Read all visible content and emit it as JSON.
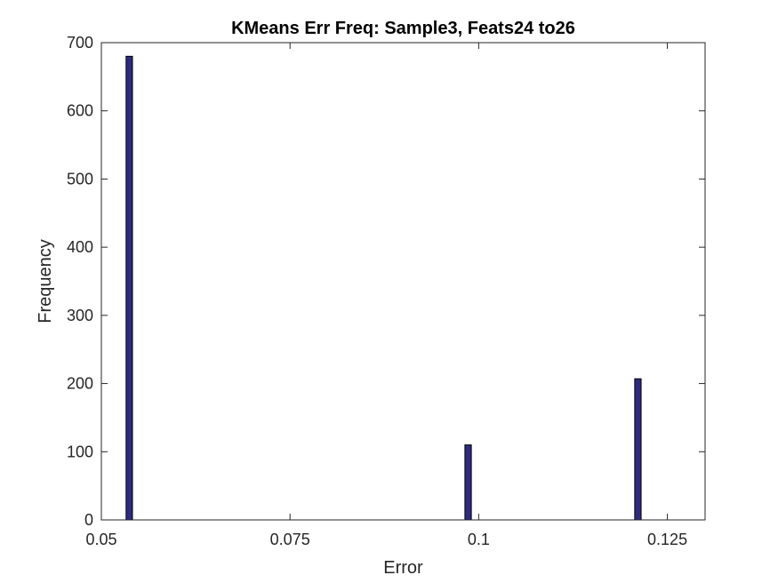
{
  "chart_data": {
    "type": "bar",
    "title": "KMeans Err Freq: Sample3, Feats24 to26",
    "xlabel": "Error",
    "ylabel": "Frequency",
    "xlim": [
      0.05,
      0.13
    ],
    "ylim": [
      0,
      700
    ],
    "xticks": [
      0.05,
      0.075,
      0.1,
      0.125
    ],
    "xtick_labels": [
      "0.05",
      "0.075",
      "0.1",
      "0.125"
    ],
    "yticks": [
      0,
      100,
      200,
      300,
      400,
      500,
      600,
      700
    ],
    "ytick_labels": [
      "0",
      "100",
      "200",
      "300",
      "400",
      "500",
      "600",
      "700"
    ],
    "bar_width": 0.00085,
    "bars": [
      {
        "x": 0.0537,
        "value": 680
      },
      {
        "x": 0.0986,
        "value": 110
      },
      {
        "x": 0.1211,
        "value": 207
      }
    ],
    "grid": false,
    "colors": {
      "bar_fill": "#2d2b7d",
      "bar_edge": "#000000",
      "axis": "#262626"
    }
  }
}
